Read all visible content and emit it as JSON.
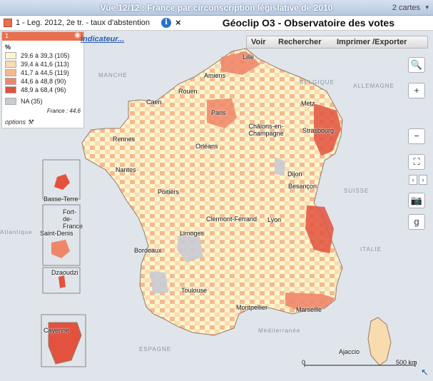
{
  "title": "Vue 12/12 : France par circonscription législative de 2010",
  "maps_count": "2 cartes",
  "indicator": {
    "label": "1 - Leg. 2012, 2e tr. - taux d'abstention",
    "color": "#e8704f",
    "change_link": "indicateur..."
  },
  "brand": "Géoclip O3 - Observatoire des votes",
  "toolbar": {
    "voir": "Voir",
    "rechercher": "Rechercher",
    "imprimer": "Imprimer /Exporter"
  },
  "legend": {
    "number": "1",
    "unit": "%",
    "classes": [
      {
        "label": "29,6 à 39,3 (105)",
        "color": "#fbf6cf"
      },
      {
        "label": "39,4 à 41,6 (113)",
        "color": "#f9dbb0"
      },
      {
        "label": "41,7 à 44,5 (119)",
        "color": "#f5b98e"
      },
      {
        "label": "44,6 à 48,8 (90)",
        "color": "#ee876a"
      },
      {
        "label": "48,9 à 68,4 (96)",
        "color": "#e2523e"
      },
      {
        "label": "NA (35)",
        "color": "#c9cbd3"
      }
    ],
    "france_avg": "France : 44,6",
    "options": "options"
  },
  "cities": [
    "Lille",
    "Amiens",
    "Rouen",
    "Caen",
    "Paris",
    "Metz",
    "Châlons-en-Champagne",
    "Strasbourg",
    "Rennes",
    "Orléans",
    "Nantes",
    "Dijon",
    "Besançon",
    "Poitiers",
    "Clermont-Ferrand",
    "Lyon",
    "Limoges",
    "Bordeaux",
    "Toulouse",
    "Montpellier",
    "Marseille",
    "Ajaccio"
  ],
  "overseas": [
    "Basse-Terre",
    "Fort-de-France",
    "Saint-Denis",
    "Dzaoudzi",
    "Cayenne"
  ],
  "countries": [
    "MANCHE",
    "BELGIQUE",
    "ALLEMAGNE",
    "SUISSE",
    "ITALIE",
    "Atlantique",
    "Méditerranée",
    "ESPAGNE"
  ],
  "scale": {
    "start": "0",
    "end": "500 km"
  }
}
